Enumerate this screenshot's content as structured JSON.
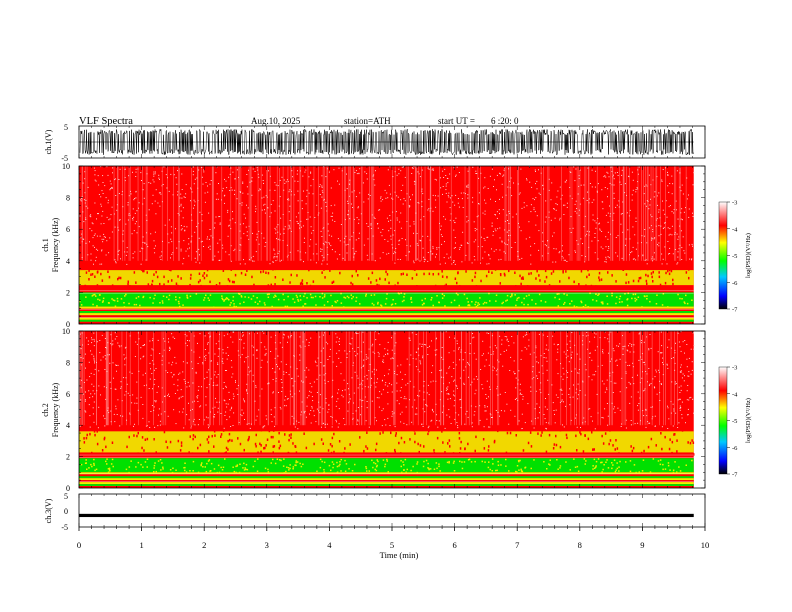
{
  "header": {
    "title": "VLF  Spectra",
    "date": "Aug.10, 2025",
    "station": "station=ATH",
    "start_label": "start  UT  =",
    "start_time": "6  :20: 0"
  },
  "colors": {
    "background_noise": "#ff0000",
    "pale_noise": "#ffd6d6",
    "band_yellow": "#f0f000",
    "band_green": "#00e000",
    "trace": "#000000",
    "colorbar": [
      "#000000",
      "#0000ff",
      "#00c8ff",
      "#00ff00",
      "#ffff00",
      "#ff0000",
      "#ffffff"
    ]
  },
  "chart_data": [
    {
      "type": "line",
      "name": "ch1-waveform",
      "ylabel": "ch.1(V)",
      "ylim": [
        -5,
        5
      ],
      "yticks": [
        "5",
        "-5"
      ],
      "x_range_min": [
        0,
        9.82
      ],
      "description_style": "dense noisy waveform spanning approx -4 to +4 V"
    },
    {
      "type": "heatmap",
      "name": "ch1-spectrogram",
      "ylabel": "ch.1\nFrequency  (kHz)",
      "ylabel_lines": [
        "ch.1",
        "Frequency  (kHz)"
      ],
      "ylim": [
        0,
        10
      ],
      "yticks": [
        "0",
        "2",
        "4",
        "6",
        "8",
        "10"
      ],
      "x_range_min": [
        0,
        9.82
      ],
      "bands_khz": [
        {
          "from": 3.6,
          "to": 10,
          "level": "red"
        },
        {
          "from": 2.4,
          "to": 3.6,
          "level": "yellow"
        },
        {
          "from": 2.0,
          "to": 2.4,
          "level": "red"
        },
        {
          "from": 1.1,
          "to": 2.0,
          "level": "green"
        },
        {
          "from": 0.0,
          "to": 1.1,
          "level": "mixed"
        }
      ],
      "colorbar": {
        "label": "log(PSD)(V²/Hz)",
        "ticks": [
          "-3",
          "-4",
          "-5",
          "-6",
          "-7"
        ],
        "range": [
          -7,
          -3
        ]
      }
    },
    {
      "type": "heatmap",
      "name": "ch2-spectrogram",
      "ylabel": "ch.2\nFrequency  (kHz)",
      "ylabel_lines": [
        "ch.2",
        "Frequency  (kHz)"
      ],
      "ylim": [
        0,
        10
      ],
      "yticks": [
        "0",
        "2",
        "4",
        "6",
        "8",
        "10"
      ],
      "x_range_min": [
        0,
        9.82
      ],
      "bands_khz": [
        {
          "from": 3.8,
          "to": 10,
          "level": "red"
        },
        {
          "from": 2.2,
          "to": 3.8,
          "level": "yellow"
        },
        {
          "from": 1.9,
          "to": 2.2,
          "level": "red"
        },
        {
          "from": 1.0,
          "to": 1.9,
          "level": "green"
        },
        {
          "from": 0.0,
          "to": 1.0,
          "level": "mixed"
        }
      ],
      "colorbar": {
        "label": "log(PSD)(V²/Hz)",
        "ticks": [
          "-3",
          "-4",
          "-5",
          "-6",
          "-7"
        ],
        "range": [
          -7,
          -3
        ]
      }
    },
    {
      "type": "line",
      "name": "ch3-waveform",
      "ylabel": "ch.3(V)",
      "ylim": [
        -5,
        5
      ],
      "yticks": [
        "5",
        "0",
        "-5"
      ],
      "x_range_min": [
        0,
        9.82
      ],
      "level_v": -1.5
    }
  ],
  "xaxis": {
    "label": "Time  (min)",
    "ticks": [
      "0",
      "1",
      "2",
      "3",
      "4",
      "5",
      "6",
      "7",
      "8",
      "9",
      "10"
    ],
    "range": [
      0,
      10
    ]
  }
}
